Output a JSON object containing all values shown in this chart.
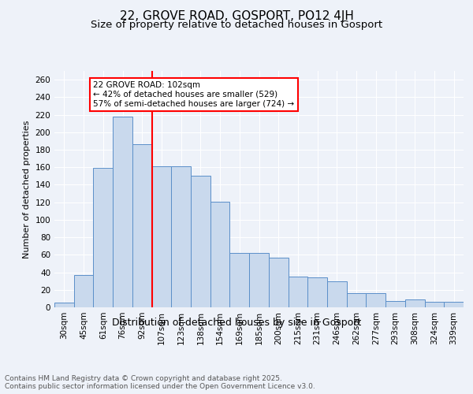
{
  "title1": "22, GROVE ROAD, GOSPORT, PO12 4JH",
  "title2": "Size of property relative to detached houses in Gosport",
  "xlabel": "Distribution of detached houses by size in Gosport",
  "ylabel": "Number of detached properties",
  "categories": [
    "30sqm",
    "45sqm",
    "61sqm",
    "76sqm",
    "92sqm",
    "107sqm",
    "123sqm",
    "138sqm",
    "154sqm",
    "169sqm",
    "185sqm",
    "200sqm",
    "215sqm",
    "231sqm",
    "246sqm",
    "262sqm",
    "277sqm",
    "293sqm",
    "308sqm",
    "324sqm",
    "339sqm"
  ],
  "values": [
    5,
    37,
    159,
    218,
    186,
    161,
    161,
    150,
    121,
    62,
    62,
    57,
    35,
    34,
    30,
    16,
    16,
    7,
    9,
    6,
    6
  ],
  "bar_color": "#c9d9ed",
  "bar_edge_color": "#5b8fc9",
  "annotation_text": "22 GROVE ROAD: 102sqm\n← 42% of detached houses are smaller (529)\n57% of semi-detached houses are larger (724) →",
  "annotation_box_color": "white",
  "annotation_box_edge_color": "red",
  "vline_x_index": 4.5,
  "vline_color": "red",
  "ylim": [
    0,
    270
  ],
  "yticks": [
    0,
    20,
    40,
    60,
    80,
    100,
    120,
    140,
    160,
    180,
    200,
    220,
    240,
    260
  ],
  "footer_text": "Contains HM Land Registry data © Crown copyright and database right 2025.\nContains public sector information licensed under the Open Government Licence v3.0.",
  "background_color": "#eef2f9",
  "title1_fontsize": 11,
  "title2_fontsize": 9.5,
  "xlabel_fontsize": 9,
  "ylabel_fontsize": 8,
  "tick_fontsize": 7.5,
  "footer_fontsize": 6.5,
  "annot_fontsize": 7.5
}
